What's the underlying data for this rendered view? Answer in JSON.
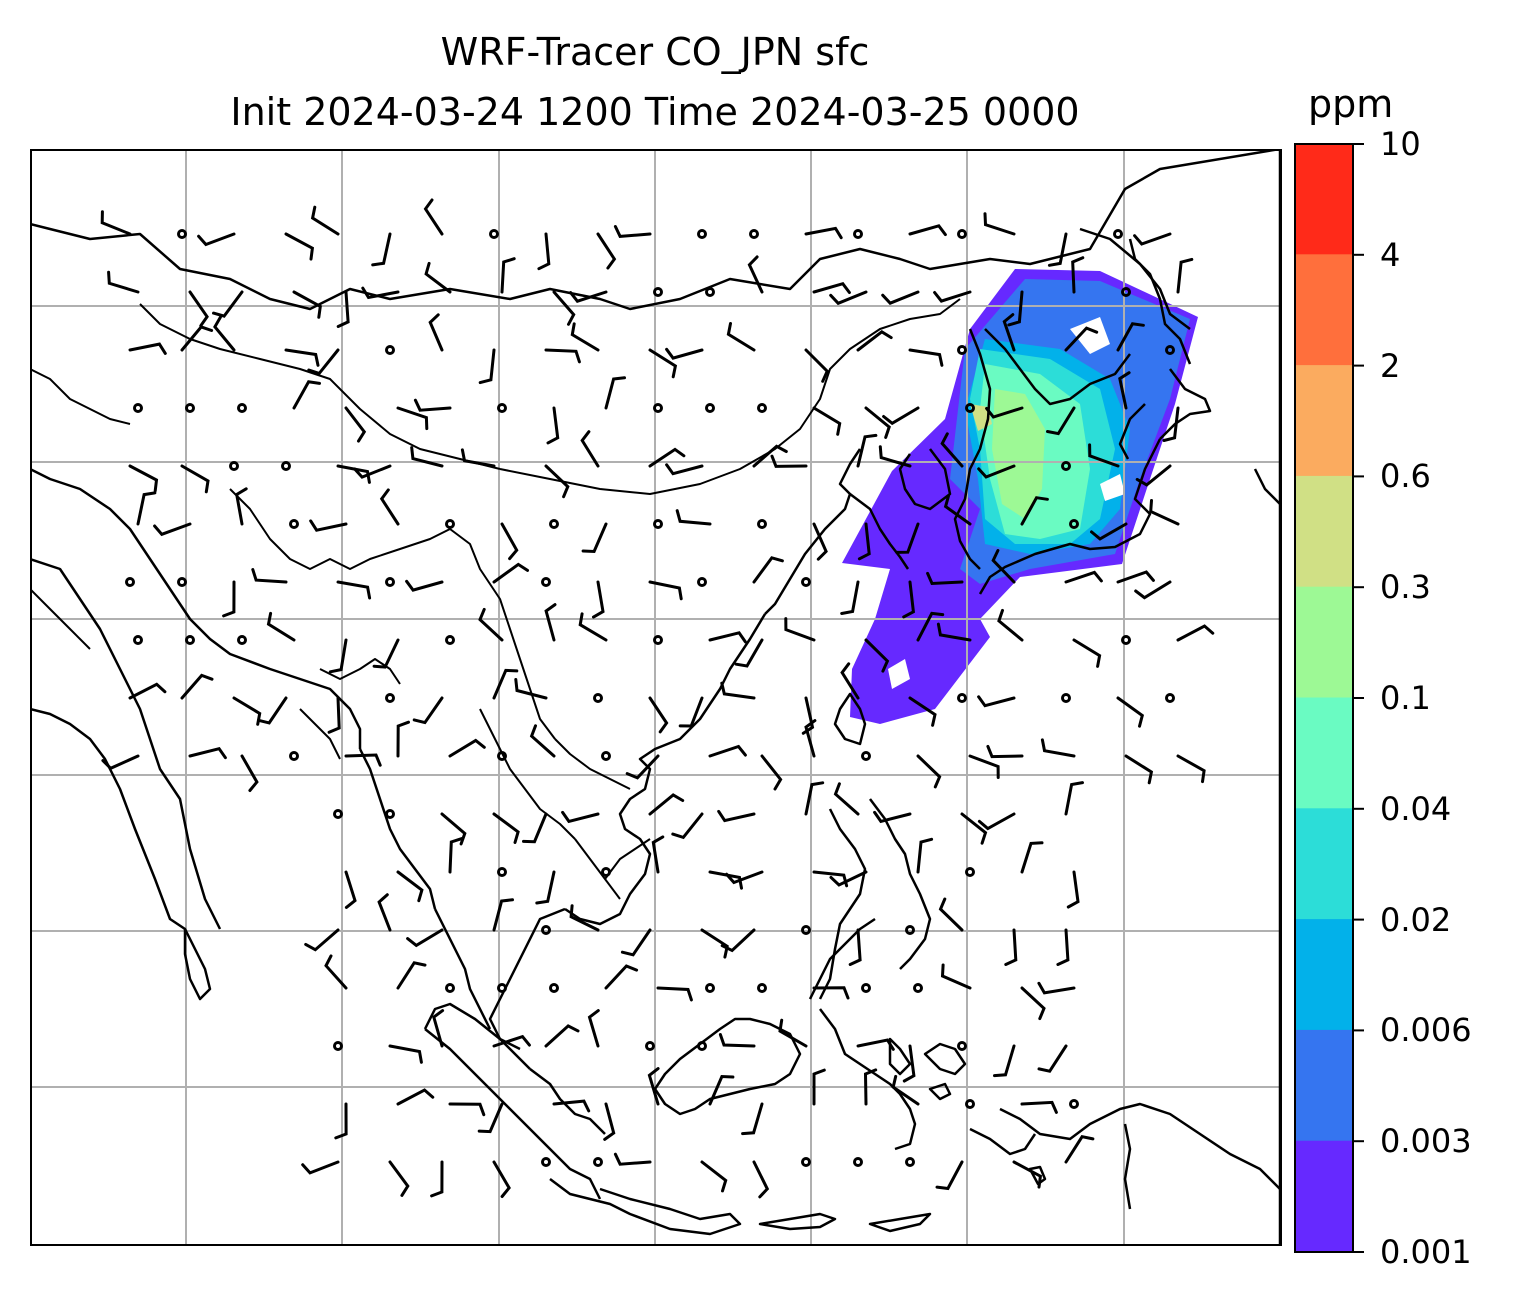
{
  "title": {
    "line1": "WRF-Tracer CO_JPN sfc",
    "line2": "Init 2024-03-24 1200 Time 2024-03-25 0000"
  },
  "colorbar": {
    "unit": "ppm",
    "tick_labels": [
      "0.001",
      "0.003",
      "0.006",
      "0.02",
      "0.04",
      "0.1",
      "0.3",
      "0.6",
      "2",
      "4",
      "10"
    ],
    "levels": [
      0.001,
      0.003,
      0.006,
      0.02,
      0.04,
      0.1,
      0.3,
      0.6,
      2,
      4,
      10
    ],
    "colors": [
      "#6629ff",
      "#3575f0",
      "#02b1ea",
      "#2cddd8",
      "#6afbc2",
      "#9df995",
      "#d0e085",
      "#fbab5f",
      "#ff6f3c",
      "#ff2a19"
    ]
  },
  "map": {
    "gridlines": true,
    "tracer_levels_present": [
      "0.001",
      "0.003",
      "0.006",
      "0.02",
      "0.04",
      "0.1",
      "0.3"
    ]
  }
}
